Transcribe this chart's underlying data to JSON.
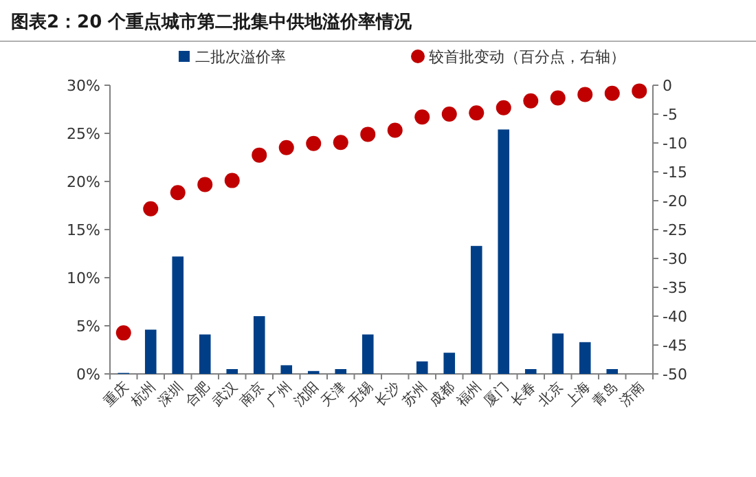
{
  "chart_data": {
    "type": "bar",
    "title": "图表2：20 个重点城市第二批集中供地溢价率情况",
    "categories": [
      "重庆",
      "杭州",
      "深圳",
      "合肥",
      "武汉",
      "南京",
      "广州",
      "沈阳",
      "天津",
      "无锡",
      "长沙",
      "苏州",
      "成都",
      "福州",
      "厦门",
      "长春",
      "北京",
      "上海",
      "青岛",
      "济南"
    ],
    "series": [
      {
        "name": "二批次溢价率",
        "color": "#003f87",
        "values": [
          0.1,
          4.6,
          12.2,
          4.1,
          0.5,
          6.0,
          0.9,
          0.3,
          0.5,
          4.1,
          0,
          1.3,
          2.2,
          13.3,
          25.4,
          0.5,
          4.2,
          3.3,
          0.5,
          0
        ]
      },
      {
        "name": "较首批变动（百分点，右轴）",
        "type": "scatter",
        "axis": "y2",
        "marker": "circle",
        "color": "#c00000",
        "values": [
          -42.9,
          -21.4,
          -18.6,
          -17.2,
          -16.5,
          -12.1,
          -10.8,
          -10.1,
          -9.9,
          -8.5,
          -7.8,
          -5.5,
          -5.0,
          -4.8,
          -3.9,
          -2.7,
          -2.2,
          -1.6,
          -1.4,
          -1.0
        ]
      }
    ],
    "ylim": [
      0,
      30
    ],
    "yticks": [
      {
        "value": 0,
        "label": "0%"
      },
      {
        "value": 5,
        "label": "5%"
      },
      {
        "value": 10,
        "label": "10%"
      },
      {
        "value": 15,
        "label": "15%"
      },
      {
        "value": 20,
        "label": "20%"
      },
      {
        "value": 25,
        "label": "25%"
      },
      {
        "value": 30,
        "label": "30%"
      }
    ],
    "y2lim": [
      -50,
      0
    ],
    "y2ticks": [
      -50,
      -45,
      -40,
      -35,
      -30,
      -25,
      -20,
      -15,
      -10,
      -5,
      0
    ],
    "grid": false,
    "legend": "top"
  }
}
